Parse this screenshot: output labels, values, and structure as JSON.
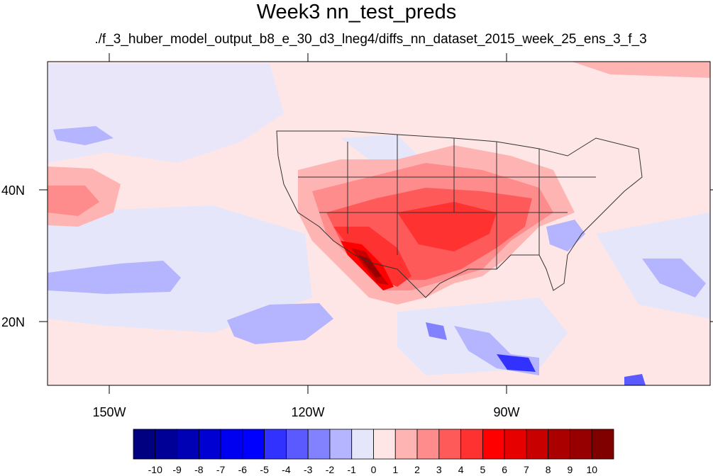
{
  "title": "Week3 nn_test_preds",
  "subtitle": "./f_3_huber_model_output_b8_e_30_d3_lneg4/diffs_nn_dataset_2015_week_25_ens_3_f_3",
  "map": {
    "projection": "cylindrical-equidistant",
    "lon_range": [
      -159.4,
      -60.6
    ],
    "lat_range": [
      10.6,
      59.4
    ],
    "field": "difference (predicted anomaly)",
    "lon_ticks": [
      {
        "value": -150,
        "label": "150W"
      },
      {
        "value": -120,
        "label": "120W"
      },
      {
        "value": -90,
        "label": "90W"
      }
    ],
    "lat_ticks": [
      {
        "value": 40,
        "label": "40N"
      },
      {
        "value": 20,
        "label": "20N"
      }
    ],
    "features": [
      {
        "name": "Southwest US / Baja California",
        "value_range": [
          5,
          10
        ]
      },
      {
        "name": "Central and Southern Plains US",
        "value_range": [
          4,
          7
        ]
      },
      {
        "name": "Southeast US (Georgia / Carolinas)",
        "value_range": [
          -3,
          -1
        ]
      },
      {
        "name": "Subtropical North Pacific (west of Baja)",
        "value_range": [
          -3,
          -1
        ]
      },
      {
        "name": "Central America / Eastern tropical Pacific",
        "value_range": [
          -6,
          -2
        ]
      },
      {
        "name": "Northeast Pacific (~40N, 150-160W)",
        "value_range": [
          3,
          4
        ]
      }
    ]
  },
  "colorbar": {
    "labels": [
      "-10",
      "-9",
      "-8",
      "-7",
      "-6",
      "-5",
      "-4",
      "-3",
      "-2",
      "-1",
      "0",
      "1",
      "2",
      "3",
      "4",
      "5",
      "6",
      "7",
      "8",
      "9",
      "10"
    ],
    "colors": [
      "#000080",
      "#000096",
      "#0000b4",
      "#0000d2",
      "#0000f0",
      "#0000ff",
      "#3232ff",
      "#5a5aff",
      "#8282ff",
      "#b4b4ff",
      "#e6e6fa",
      "#ffe6e6",
      "#ffb4b4",
      "#ff8c8c",
      "#ff5a5a",
      "#ff3232",
      "#ff0000",
      "#e60000",
      "#c80000",
      "#aa0000",
      "#960000",
      "#800000"
    ]
  }
}
